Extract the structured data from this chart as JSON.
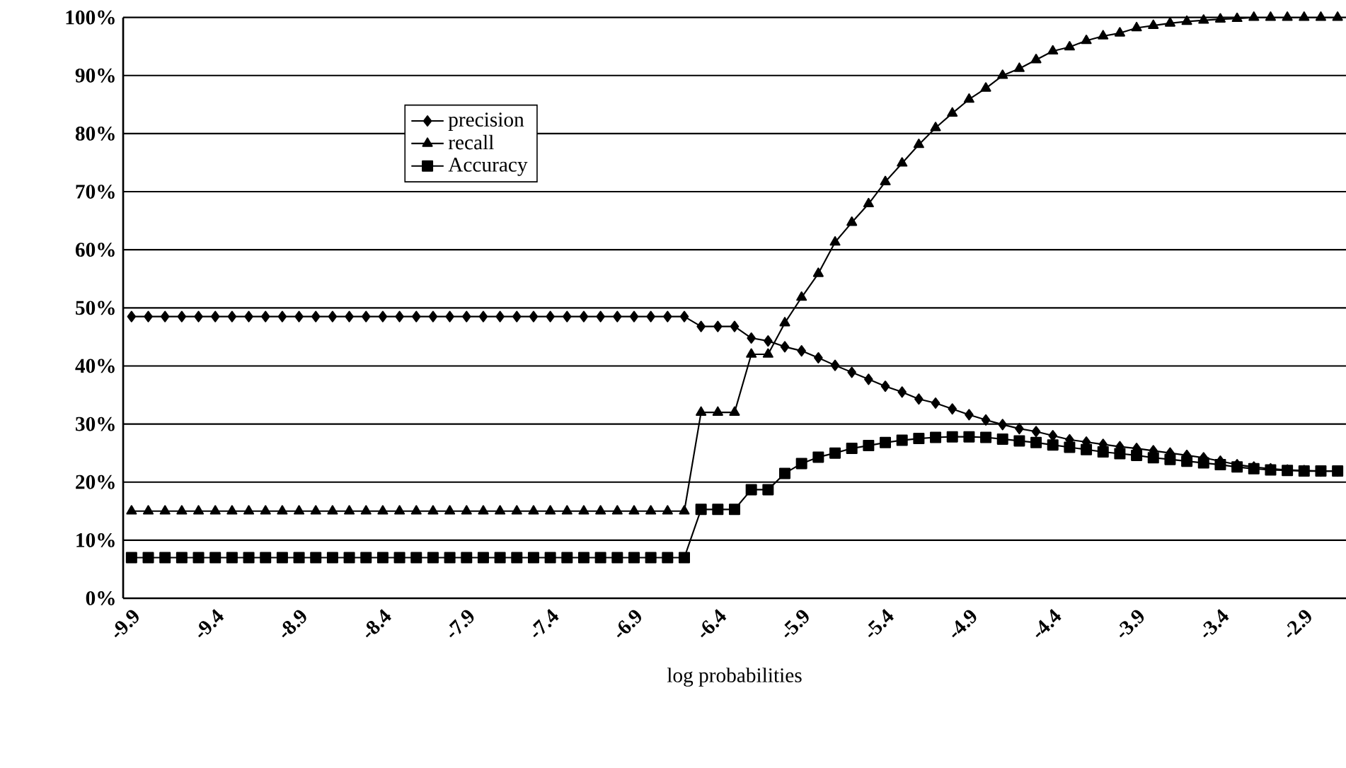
{
  "chart_data": {
    "type": "line",
    "xlabel": "log probabilities",
    "categories": [
      "-9.9",
      null,
      null,
      null,
      null,
      "-9.4",
      null,
      null,
      null,
      null,
      "-8.9",
      null,
      null,
      null,
      null,
      "-8.4",
      null,
      null,
      null,
      null,
      "-7.9",
      null,
      null,
      null,
      null,
      "-7.4",
      null,
      null,
      null,
      null,
      "-6.9",
      null,
      null,
      null,
      null,
      "-6.4",
      null,
      null,
      null,
      null,
      "-5.9",
      null,
      null,
      null,
      null,
      "-5.4",
      null,
      null,
      null,
      null,
      "-4.9",
      null,
      null,
      null,
      null,
      "-4.4",
      null,
      null,
      null,
      null,
      "-3.9",
      null,
      null,
      null,
      null,
      "-3.4",
      null,
      null,
      null,
      null,
      "-2.9",
      null,
      null
    ],
    "series": [
      {
        "name": "precision",
        "color": "#000000",
        "marker": "diamond",
        "values": [
          48.5,
          48.5,
          48.5,
          48.5,
          48.5,
          48.5,
          48.5,
          48.5,
          48.5,
          48.5,
          48.5,
          48.5,
          48.5,
          48.5,
          48.5,
          48.5,
          48.5,
          48.5,
          48.5,
          48.5,
          48.5,
          48.5,
          48.5,
          48.5,
          48.5,
          48.5,
          48.5,
          48.5,
          48.5,
          48.5,
          48.5,
          48.5,
          48.5,
          48.5,
          46.8,
          46.8,
          46.8,
          44.8,
          44.3,
          43.3,
          42.6,
          41.4,
          40.1,
          38.9,
          37.7,
          36.5,
          35.5,
          34.3,
          33.6,
          32.6,
          31.6,
          30.7,
          29.9,
          29.2,
          28.7,
          28,
          27.3,
          26.9,
          26.5,
          26.1,
          25.8,
          25.4,
          25,
          24.6,
          24.2,
          23.6,
          23,
          22.6,
          22.3,
          22.1,
          22,
          21.9,
          21.9
        ]
      },
      {
        "name": "recall",
        "color": "#000000",
        "marker": "triangle",
        "values": [
          15,
          15,
          15,
          15,
          15,
          15,
          15,
          15,
          15,
          15,
          15,
          15,
          15,
          15,
          15,
          15,
          15,
          15,
          15,
          15,
          15,
          15,
          15,
          15,
          15,
          15,
          15,
          15,
          15,
          15,
          15,
          15,
          15,
          15,
          32,
          32,
          32,
          42,
          42,
          47.4,
          51.8,
          55.9,
          61.3,
          64.7,
          67.9,
          71.7,
          74.9,
          78.1,
          81,
          83.5,
          85.9,
          87.8,
          90,
          91.2,
          92.7,
          94.2,
          94.9,
          96,
          96.8,
          97.3,
          98.2,
          98.6,
          99,
          99.3,
          99.5,
          99.7,
          99.8,
          100,
          100,
          100,
          100,
          100,
          100
        ]
      },
      {
        "name": "Accuracy",
        "color": "#000000",
        "marker": "square",
        "values": [
          7,
          7,
          7,
          7,
          7,
          7,
          7,
          7,
          7,
          7,
          7,
          7,
          7,
          7,
          7,
          7,
          7,
          7,
          7,
          7,
          7,
          7,
          7,
          7,
          7,
          7,
          7,
          7,
          7,
          7,
          7,
          7,
          7,
          7,
          15.3,
          15.3,
          15.3,
          18.7,
          18.7,
          21.5,
          23.2,
          24.3,
          25,
          25.8,
          26.3,
          26.8,
          27.2,
          27.5,
          27.7,
          27.8,
          27.8,
          27.7,
          27.4,
          27.1,
          26.8,
          26.4,
          26,
          25.6,
          25.2,
          24.9,
          24.6,
          24.2,
          23.9,
          23.6,
          23.3,
          23,
          22.6,
          22.3,
          22.1,
          22,
          21.9,
          21.9,
          21.9
        ]
      }
    ],
    "ylim": [
      0,
      100
    ],
    "yticks": [
      {
        "value": 0,
        "label": "0%"
      },
      {
        "value": 10,
        "label": "10%"
      },
      {
        "value": 20,
        "label": "20%"
      },
      {
        "value": 30,
        "label": "30%"
      },
      {
        "value": 40,
        "label": "40%"
      },
      {
        "value": 50,
        "label": "50%"
      },
      {
        "value": 60,
        "label": "60%"
      },
      {
        "value": 70,
        "label": "70%"
      },
      {
        "value": 80,
        "label": "80%"
      },
      {
        "value": 90,
        "label": "90%"
      },
      {
        "value": 100,
        "label": "100%"
      }
    ],
    "grid": "y",
    "legend": "top left",
    "line_style": "solid"
  }
}
